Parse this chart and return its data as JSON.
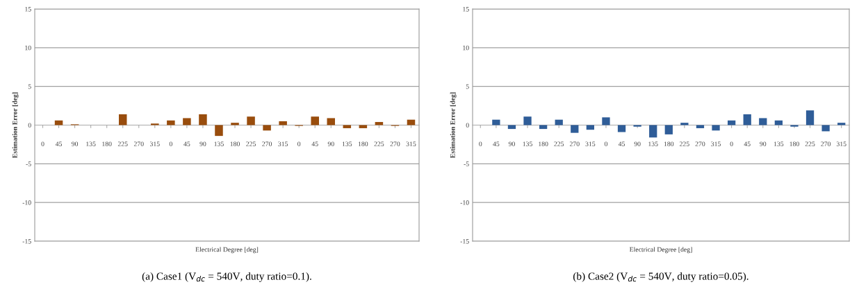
{
  "chart_data": [
    {
      "type": "bar",
      "xlabel": "Electrical Degree [deg]",
      "ylabel": "Estimation Error [deg]",
      "annotations": [
        "(a) Case1 (V$_{dc}$ = 540V, duty ratio=0.1)."
      ],
      "categories": [
        "0",
        "45",
        "90",
        "135",
        "180",
        "225",
        "270",
        "315",
        "0",
        "45",
        "90",
        "135",
        "180",
        "225",
        "270",
        "315",
        "0",
        "45",
        "90",
        "135",
        "180",
        "225",
        "270",
        "315"
      ],
      "values": [
        0,
        0.6,
        0.1,
        0,
        0,
        1.4,
        0,
        0.2,
        0.6,
        0.9,
        1.4,
        -1.4,
        0.3,
        1.1,
        -0.7,
        0.5,
        -0.1,
        1.1,
        0.9,
        -0.4,
        -0.4,
        0.4,
        -0.1,
        0.7
      ],
      "color": "#994d0d",
      "ylim": [
        -15,
        15
      ],
      "yticks": [
        -15,
        -10,
        -5,
        0,
        5,
        10,
        15
      ],
      "grid": "y",
      "legend": false
    },
    {
      "type": "bar",
      "xlabel": "Electrical Degree [deg]",
      "ylabel": "Estimation Error [deg]",
      "annotations": [
        "(b) Case2 (V$_{dc}$ = 540V, duty ratio=0.05)."
      ],
      "categories": [
        "0",
        "45",
        "90",
        "135",
        "180",
        "225",
        "270",
        "315",
        "0",
        "45",
        "90",
        "135",
        "180",
        "225",
        "270",
        "315",
        "0",
        "45",
        "90",
        "135",
        "180",
        "225",
        "270",
        "315"
      ],
      "values": [
        0,
        0.7,
        -0.5,
        1.1,
        -0.5,
        0.7,
        -1,
        -0.6,
        1,
        -0.9,
        -0.2,
        -1.6,
        -1.2,
        0.3,
        -0.4,
        -0.7,
        0.6,
        1.4,
        0.9,
        0.6,
        -0.2,
        1.9,
        -0.8,
        0.3
      ],
      "color": "#2f5d98",
      "ylim": [
        -15,
        15
      ],
      "yticks": [
        -15,
        -10,
        -5,
        0,
        5,
        10,
        15
      ],
      "grid": "y",
      "legend": false
    }
  ]
}
